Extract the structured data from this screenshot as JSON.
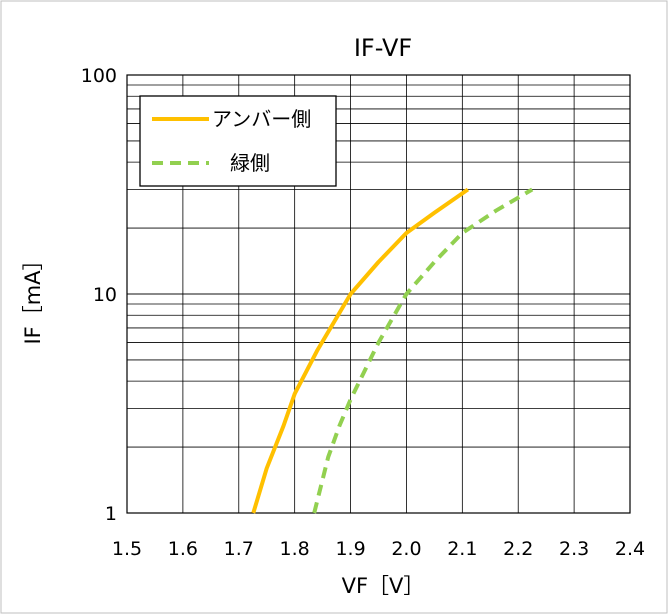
{
  "chart_data": {
    "type": "line",
    "title": "IF-VF",
    "xlabel": "VF［V］",
    "ylabel": "IF［mA］",
    "xlim": [
      1.5,
      2.4
    ],
    "ylim": [
      1,
      100
    ],
    "yscale": "log",
    "grid": true,
    "legend_position": "top-left",
    "x_tick_labels": [
      "1.5",
      "1.6",
      "1.7",
      "1.8",
      "1.9",
      "2.0",
      "2.1",
      "2.2",
      "2.3",
      "2.4"
    ],
    "y_tick_labels": [
      "1",
      "10",
      "100"
    ],
    "series": [
      {
        "name": "アンバー側",
        "color": "#ffc000",
        "style": "solid",
        "points": [
          [
            1.726,
            1
          ],
          [
            1.75,
            1.6
          ],
          [
            1.78,
            2.5
          ],
          [
            1.8,
            3.5
          ],
          [
            1.84,
            5.5
          ],
          [
            1.9,
            10
          ],
          [
            1.95,
            14
          ],
          [
            2.0,
            19
          ],
          [
            2.05,
            23.5
          ],
          [
            2.11,
            30
          ]
        ]
      },
      {
        "name": "緑側",
        "color": "#92d050",
        "style": "dashed",
        "points": [
          [
            1.835,
            1
          ],
          [
            1.86,
            1.8
          ],
          [
            1.88,
            2.5
          ],
          [
            1.9,
            3.3
          ],
          [
            1.95,
            6
          ],
          [
            2.0,
            10
          ],
          [
            2.05,
            14
          ],
          [
            2.1,
            19
          ],
          [
            2.16,
            24
          ],
          [
            2.225,
            30
          ]
        ]
      }
    ]
  }
}
